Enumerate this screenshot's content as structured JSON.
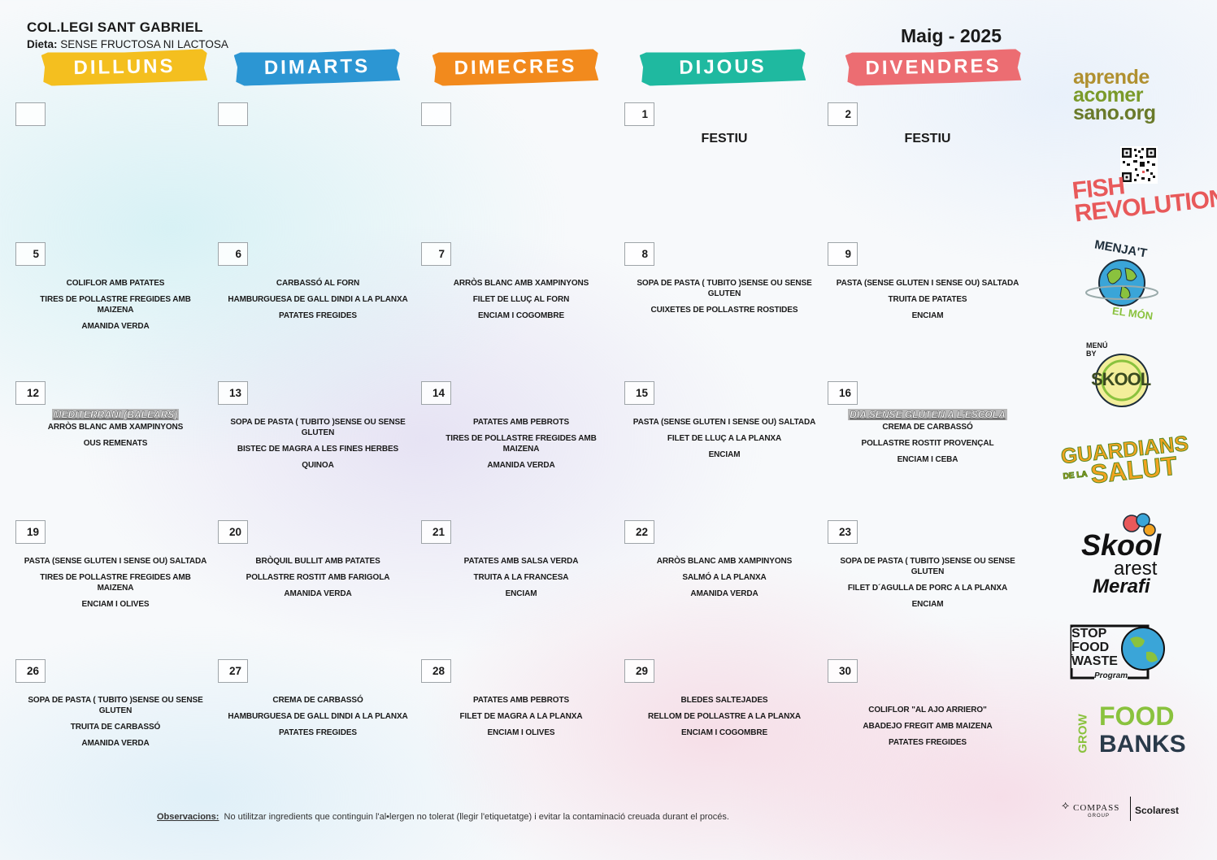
{
  "header": {
    "school": "COL.LEGI SANT GABRIEL",
    "diet_label": "Dieta:",
    "diet_value": "SENSE FRUCTOSA NI LACTOSA",
    "month": "Maig - 2025"
  },
  "days": [
    {
      "label": "DILLUNS",
      "color": "#f4bf1f"
    },
    {
      "label": "DIMARTS",
      "color": "#2c96d3"
    },
    {
      "label": "DIMECRES",
      "color": "#f28a1d"
    },
    {
      "label": "DIJOUS",
      "color": "#1fb9a0"
    },
    {
      "label": "DIVENDRES",
      "color": "#ec6d72"
    }
  ],
  "weeks": [
    [
      {
        "num": "",
        "special": "",
        "dishes": []
      },
      {
        "num": "",
        "special": "",
        "dishes": []
      },
      {
        "num": "",
        "special": "",
        "dishes": []
      },
      {
        "num": "1",
        "festiu": "FESTIU",
        "special": "",
        "dishes": []
      },
      {
        "num": "2",
        "festiu": "FESTIU",
        "special": "",
        "dishes": []
      }
    ],
    [
      {
        "num": "5",
        "special": "",
        "dishes": [
          "COLIFLOR AMB PATATES",
          "TIRES DE POLLASTRE FREGIDES AMB MAIZENA",
          "AMANIDA VERDA"
        ]
      },
      {
        "num": "6",
        "special": "",
        "dishes": [
          "CARBASSÓ AL FORN",
          "HAMBURGUESA DE GALL DINDI A LA PLANXA",
          "PATATES FREGIDES"
        ]
      },
      {
        "num": "7",
        "special": "",
        "dishes": [
          "ARRÒS BLANC AMB XAMPINYONS",
          "FILET DE LLUÇ AL FORN",
          "ENCIAM I COGOMBRE"
        ]
      },
      {
        "num": "8",
        "special": "",
        "dishes": [
          "SOPA DE PASTA ( TUBITO )SENSE OU SENSE GLUTEN",
          "CUIXETES DE POLLASTRE ROSTIDES"
        ]
      },
      {
        "num": "9",
        "special": "",
        "dishes": [
          "PASTA (SENSE GLUTEN I SENSE OU) SALTADA",
          "TRUITA DE PATATES",
          "ENCIAM"
        ]
      }
    ],
    [
      {
        "num": "12",
        "special": "MEDITERRANI (BALEARS)",
        "dishes": [
          "ARRÒS BLANC AMB XAMPINYONS",
          "OUS REMENATS"
        ]
      },
      {
        "num": "13",
        "special": "",
        "dishes": [
          "SOPA DE PASTA ( TUBITO )SENSE OU SENSE GLUTEN",
          "BISTEC DE MAGRA A LES FINES HERBES",
          "QUINOA"
        ]
      },
      {
        "num": "14",
        "special": "",
        "dishes": [
          "PATATES AMB PEBROTS",
          "TIRES DE POLLASTRE FREGIDES AMB MAIZENA",
          "AMANIDA VERDA"
        ]
      },
      {
        "num": "15",
        "special": "",
        "dishes": [
          "PASTA (SENSE GLUTEN I SENSE OU) SALTADA",
          "FILET DE LLUÇ A LA PLANXA",
          "ENCIAM"
        ]
      },
      {
        "num": "16",
        "special": "DIA SENSE GLUTEN A L'ESCOLA",
        "dishes": [
          "CREMA DE CARBASSÓ",
          "POLLASTRE ROSTIT PROVENÇAL",
          "ENCIAM I CEBA"
        ]
      }
    ],
    [
      {
        "num": "19",
        "special": "",
        "dishes": [
          "PASTA (SENSE GLUTEN I SENSE OU) SALTADA",
          "TIRES DE POLLASTRE FREGIDES AMB MAIZENA",
          "ENCIAM I OLIVES"
        ]
      },
      {
        "num": "20",
        "special": "",
        "dishes": [
          "BRÒQUIL BULLIT AMB PATATES",
          "POLLASTRE ROSTIT AMB FARIGOLA",
          "AMANIDA VERDA"
        ]
      },
      {
        "num": "21",
        "special": "",
        "dishes": [
          "PATATES AMB SALSA VERDA",
          "TRUITA A LA FRANCESA",
          "ENCIAM"
        ]
      },
      {
        "num": "22",
        "special": "",
        "dishes": [
          "ARRÒS BLANC AMB XAMPINYONS",
          "SALMÓ A LA PLANXA",
          "AMANIDA VERDA"
        ]
      },
      {
        "num": "23",
        "special": "",
        "dishes": [
          "SOPA DE PASTA ( TUBITO )SENSE OU SENSE GLUTEN",
          "FILET D´AGULLA DE PORC A LA PLANXA",
          "ENCIAM"
        ]
      }
    ],
    [
      {
        "num": "26",
        "special": "",
        "dishes": [
          "SOPA DE PASTA ( TUBITO )SENSE OU SENSE GLUTEN",
          "TRUITA DE CARBASSÓ",
          "AMANIDA VERDA"
        ]
      },
      {
        "num": "27",
        "special": "",
        "dishes": [
          "CREMA DE CARBASSÓ",
          "HAMBURGUESA DE GALL DINDI A LA PLANXA",
          "PATATES FREGIDES"
        ]
      },
      {
        "num": "28",
        "special": "",
        "dishes": [
          "PATATES AMB PEBROTS",
          "FILET DE MAGRA A LA PLANXA",
          "ENCIAM I OLIVES"
        ]
      },
      {
        "num": "29",
        "special": "",
        "dishes": [
          "BLEDES SALTEJADES",
          "RELLOM DE POLLASTRE A LA PLANXA",
          "ENCIAM I COGOMBRE"
        ]
      },
      {
        "num": "30",
        "special": "",
        "dishes": [
          "COLIFLOR \"AL AJO ARRIERO\"",
          "ABADEJO FREGIT AMB MAIZENA",
          "PATATES FREGIDES"
        ]
      }
    ]
  ],
  "footer": {
    "obs_label": "Observacions:",
    "obs_text": "No utilitzar ingredients que continguin l'al•lergen no tolerat (llegir l'etiquetatge) i evitar la contaminació creuada durant el procés."
  },
  "logos": {
    "aprende": [
      "aprende",
      "acomer",
      "sano.org"
    ],
    "fish": [
      "FISH",
      "REVOLUTION"
    ],
    "menjat": [
      "MENJA'T",
      "EL MÓN"
    ],
    "skool": [
      "MENÚ BY",
      "SKOOL"
    ],
    "guardians": [
      "GUARDIANS",
      "DE LA",
      "SALUT"
    ],
    "skoolarest": [
      "Skool",
      "arest",
      "Merafi"
    ],
    "stopfood": [
      "STOP",
      "FOOD",
      "WASTE",
      "Program"
    ],
    "growfood": [
      "GROW",
      "FOOD",
      "BANKS"
    ],
    "compass": [
      "COMPASS",
      "GROUP",
      "Scolarest"
    ]
  }
}
